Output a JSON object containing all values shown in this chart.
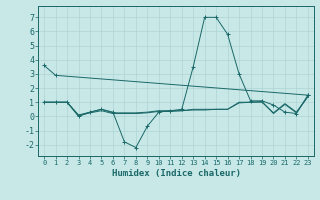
{
  "title": "",
  "xlabel": "Humidex (Indice chaleur)",
  "background_color": "#c8e8e8",
  "grid_color": "#afd4d4",
  "line_color": "#1a6868",
  "xlim": [
    -0.5,
    23.5
  ],
  "ylim": [
    -2.8,
    7.8
  ],
  "yticks": [
    -2,
    -1,
    0,
    1,
    2,
    3,
    4,
    5,
    6,
    7
  ],
  "xticks": [
    0,
    1,
    2,
    3,
    4,
    5,
    6,
    7,
    8,
    9,
    10,
    11,
    12,
    13,
    14,
    15,
    16,
    17,
    18,
    19,
    20,
    21,
    22,
    23
  ],
  "series": [
    {
      "x": [
        0,
        1,
        23
      ],
      "y": [
        3.6,
        2.9,
        1.5
      ],
      "marker": true,
      "connect_ends": false
    },
    {
      "x": [
        0,
        1,
        2,
        3,
        4,
        5,
        6,
        7,
        8,
        9,
        10,
        11,
        12,
        13,
        14,
        15,
        16,
        17,
        18,
        19,
        20,
        21,
        22,
        23
      ],
      "y": [
        1.0,
        1.0,
        1.0,
        0.0,
        0.3,
        0.5,
        0.3,
        -1.8,
        -2.2,
        -0.7,
        0.3,
        0.4,
        0.5,
        3.5,
        7.0,
        7.0,
        5.8,
        3.0,
        1.1,
        1.1,
        0.8,
        0.3,
        0.2,
        1.5
      ],
      "marker": true,
      "connect_ends": true
    },
    {
      "x": [
        0,
        1,
        2,
        3,
        4,
        5,
        6,
        7,
        8,
        9,
        10,
        11,
        12,
        13,
        14,
        15,
        16,
        17,
        18,
        19,
        20,
        21,
        22,
        23
      ],
      "y": [
        1.0,
        1.0,
        1.0,
        0.05,
        0.25,
        0.4,
        0.2,
        0.2,
        0.2,
        0.25,
        0.35,
        0.35,
        0.4,
        0.45,
        0.45,
        0.5,
        0.5,
        0.95,
        1.0,
        1.05,
        0.2,
        0.85,
        0.25,
        1.4
      ],
      "marker": false,
      "connect_ends": true
    },
    {
      "x": [
        0,
        1,
        2,
        3,
        4,
        5,
        6,
        7,
        8,
        9,
        10,
        11,
        12,
        13,
        14,
        15,
        16,
        17,
        18,
        19,
        20,
        21,
        22,
        23
      ],
      "y": [
        1.0,
        1.0,
        1.0,
        0.1,
        0.3,
        0.5,
        0.25,
        0.25,
        0.25,
        0.3,
        0.4,
        0.4,
        0.4,
        0.5,
        0.5,
        0.5,
        0.5,
        1.0,
        1.0,
        1.0,
        0.25,
        0.9,
        0.3,
        1.4
      ],
      "marker": false,
      "connect_ends": true
    }
  ]
}
